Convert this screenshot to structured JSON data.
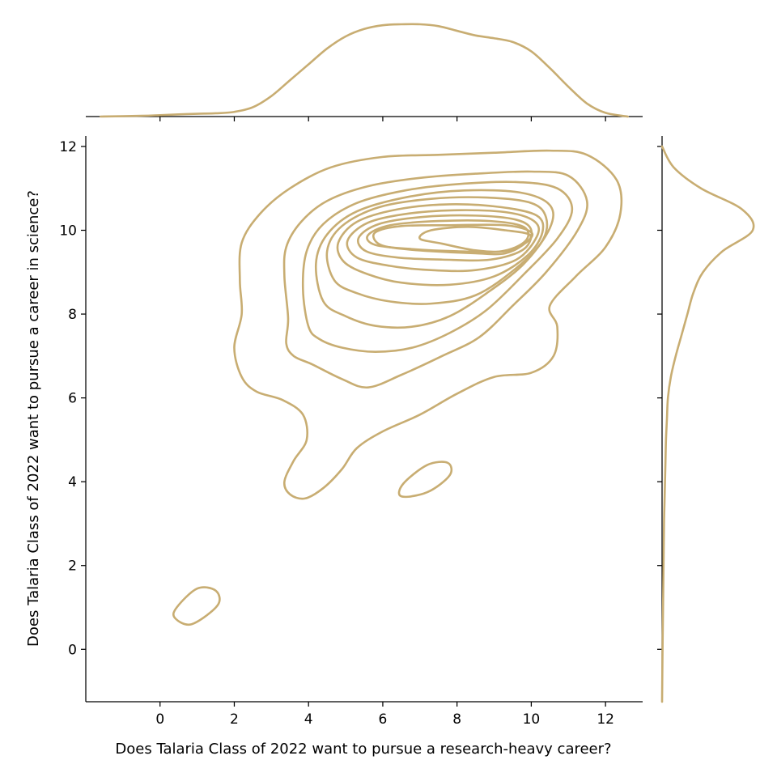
{
  "chart_data": {
    "type": "kde-jointplot",
    "xlabel": "Does Talaria Class of 2022 want to pursue a research-heavy career?",
    "ylabel": "Does Talaria Class of 2022 want to pursue a career in science?",
    "xlim": [
      -2,
      13
    ],
    "ylim": [
      -1.25,
      12.25
    ],
    "xticks": [
      "0",
      "2",
      "4",
      "6",
      "8",
      "10",
      "12"
    ],
    "yticks": [
      "0",
      "2",
      "4",
      "6",
      "8",
      "10",
      "12"
    ],
    "grid": false,
    "legend": "none",
    "color": "#c8ad72",
    "contours": [
      {
        "level": 1,
        "points": [
          [
            2.2,
            6.5
          ],
          [
            2.0,
            7.2
          ],
          [
            2.2,
            8.0
          ],
          [
            2.15,
            8.8
          ],
          [
            2.2,
            9.7
          ],
          [
            2.7,
            10.4
          ],
          [
            3.5,
            11.0
          ],
          [
            4.6,
            11.5
          ],
          [
            6.0,
            11.75
          ],
          [
            7.5,
            11.8
          ],
          [
            9.0,
            11.85
          ],
          [
            10.5,
            11.9
          ],
          [
            11.5,
            11.8
          ],
          [
            12.3,
            11.2
          ],
          [
            12.4,
            10.4
          ],
          [
            12.0,
            9.6
          ],
          [
            11.2,
            8.9
          ],
          [
            10.5,
            8.2
          ],
          [
            10.7,
            7.7
          ],
          [
            10.6,
            7.0
          ],
          [
            10.0,
            6.6
          ],
          [
            9.0,
            6.5
          ],
          [
            8.0,
            6.1
          ],
          [
            7.0,
            5.6
          ],
          [
            6.0,
            5.2
          ],
          [
            5.3,
            4.8
          ],
          [
            4.9,
            4.3
          ],
          [
            4.4,
            3.85
          ],
          [
            3.9,
            3.6
          ],
          [
            3.5,
            3.7
          ],
          [
            3.35,
            4.0
          ],
          [
            3.6,
            4.5
          ],
          [
            3.95,
            5.0
          ],
          [
            3.85,
            5.6
          ],
          [
            3.3,
            5.95
          ],
          [
            2.6,
            6.15
          ],
          [
            2.2,
            6.5
          ]
        ]
      },
      {
        "level": 1,
        "points": [
          [
            6.5,
            3.65
          ],
          [
            7.2,
            3.75
          ],
          [
            7.8,
            4.15
          ],
          [
            7.75,
            4.45
          ],
          [
            7.2,
            4.4
          ],
          [
            6.55,
            3.95
          ],
          [
            6.5,
            3.65
          ]
        ]
      },
      {
        "level": 1,
        "points": [
          [
            0.4,
            0.75
          ],
          [
            0.85,
            0.6
          ],
          [
            1.55,
            1.05
          ],
          [
            1.5,
            1.4
          ],
          [
            1.0,
            1.45
          ],
          [
            0.45,
            1.0
          ],
          [
            0.4,
            0.75
          ]
        ]
      },
      {
        "level": 2,
        "points": [
          [
            3.4,
            7.3
          ],
          [
            3.45,
            7.9
          ],
          [
            3.35,
            8.9
          ],
          [
            3.4,
            9.6
          ],
          [
            3.8,
            10.2
          ],
          [
            4.5,
            10.7
          ],
          [
            5.6,
            11.05
          ],
          [
            7.0,
            11.25
          ],
          [
            8.5,
            11.35
          ],
          [
            10.0,
            11.4
          ],
          [
            11.0,
            11.3
          ],
          [
            11.5,
            10.7
          ],
          [
            11.25,
            10.0
          ],
          [
            10.4,
            9.0
          ],
          [
            9.5,
            8.2
          ],
          [
            8.6,
            7.45
          ],
          [
            7.6,
            7.0
          ],
          [
            6.5,
            6.55
          ],
          [
            5.6,
            6.25
          ],
          [
            4.9,
            6.45
          ],
          [
            4.1,
            6.8
          ],
          [
            3.6,
            7.0
          ],
          [
            3.4,
            7.3
          ]
        ]
      },
      {
        "level": 3,
        "points": [
          [
            4.0,
            7.7
          ],
          [
            3.85,
            8.6
          ],
          [
            3.95,
            9.5
          ],
          [
            4.4,
            10.15
          ],
          [
            5.3,
            10.65
          ],
          [
            6.6,
            10.95
          ],
          [
            8.0,
            11.1
          ],
          [
            9.6,
            11.15
          ],
          [
            10.7,
            11.0
          ],
          [
            11.1,
            10.5
          ],
          [
            10.7,
            9.8
          ],
          [
            9.8,
            8.95
          ],
          [
            8.8,
            8.1
          ],
          [
            7.8,
            7.55
          ],
          [
            6.8,
            7.2
          ],
          [
            5.8,
            7.1
          ],
          [
            4.9,
            7.2
          ],
          [
            4.3,
            7.4
          ],
          [
            4.0,
            7.7
          ]
        ]
      },
      {
        "level": 4,
        "points": [
          [
            4.4,
            8.3
          ],
          [
            4.2,
            9.2
          ],
          [
            4.5,
            9.9
          ],
          [
            5.3,
            10.45
          ],
          [
            6.7,
            10.8
          ],
          [
            8.2,
            10.95
          ],
          [
            9.7,
            10.9
          ],
          [
            10.5,
            10.6
          ],
          [
            10.5,
            10.05
          ],
          [
            9.8,
            9.2
          ],
          [
            8.8,
            8.5
          ],
          [
            7.8,
            7.95
          ],
          [
            6.8,
            7.7
          ],
          [
            5.8,
            7.72
          ],
          [
            5.0,
            7.95
          ],
          [
            4.4,
            8.3
          ]
        ]
      },
      {
        "level": 5,
        "points": [
          [
            4.7,
            8.8
          ],
          [
            4.5,
            9.5
          ],
          [
            4.9,
            10.1
          ],
          [
            5.9,
            10.55
          ],
          [
            7.3,
            10.75
          ],
          [
            8.8,
            10.78
          ],
          [
            10.0,
            10.65
          ],
          [
            10.4,
            10.3
          ],
          [
            10.3,
            9.75
          ],
          [
            9.6,
            9.1
          ],
          [
            8.5,
            8.45
          ],
          [
            7.3,
            8.25
          ],
          [
            6.2,
            8.3
          ],
          [
            5.3,
            8.5
          ],
          [
            4.7,
            8.8
          ]
        ]
      },
      {
        "level": 6,
        "points": [
          [
            4.95,
            9.25
          ],
          [
            4.8,
            9.7
          ],
          [
            5.3,
            10.2
          ],
          [
            6.4,
            10.5
          ],
          [
            7.8,
            10.62
          ],
          [
            9.2,
            10.55
          ],
          [
            10.15,
            10.35
          ],
          [
            10.3,
            9.95
          ],
          [
            9.9,
            9.4
          ],
          [
            9.0,
            8.9
          ],
          [
            7.8,
            8.7
          ],
          [
            6.5,
            8.75
          ],
          [
            5.6,
            8.95
          ],
          [
            4.95,
            9.25
          ]
        ]
      },
      {
        "level": 7,
        "points": [
          [
            5.3,
            9.35
          ],
          [
            5.05,
            9.75
          ],
          [
            5.6,
            10.18
          ],
          [
            6.7,
            10.4
          ],
          [
            8.1,
            10.48
          ],
          [
            9.4,
            10.42
          ],
          [
            10.1,
            10.2
          ],
          [
            10.15,
            9.85
          ],
          [
            9.6,
            9.3
          ],
          [
            8.5,
            9.05
          ],
          [
            7.3,
            9.05
          ],
          [
            6.2,
            9.15
          ],
          [
            5.3,
            9.35
          ]
        ]
      },
      {
        "level": 8,
        "points": [
          [
            5.55,
            9.5
          ],
          [
            5.35,
            9.82
          ],
          [
            5.9,
            10.15
          ],
          [
            7.1,
            10.32
          ],
          [
            8.5,
            10.35
          ],
          [
            9.6,
            10.25
          ],
          [
            10.0,
            10.0
          ],
          [
            9.8,
            9.55
          ],
          [
            8.9,
            9.3
          ],
          [
            7.6,
            9.3
          ],
          [
            6.4,
            9.35
          ],
          [
            5.55,
            9.5
          ]
        ]
      },
      {
        "level": 9,
        "points": [
          [
            5.8,
            9.65
          ],
          [
            5.6,
            9.88
          ],
          [
            6.2,
            10.12
          ],
          [
            7.5,
            10.22
          ],
          [
            8.9,
            10.22
          ],
          [
            9.8,
            10.08
          ],
          [
            9.85,
            9.75
          ],
          [
            9.2,
            9.5
          ],
          [
            8.0,
            9.5
          ],
          [
            6.8,
            9.55
          ],
          [
            5.8,
            9.65
          ]
        ]
      },
      {
        "level": 10,
        "points": [
          [
            5.85,
            9.7
          ],
          [
            5.8,
            9.95
          ],
          [
            6.5,
            10.1
          ],
          [
            7.8,
            10.12
          ],
          [
            9.3,
            10.12
          ],
          [
            10.0,
            9.95
          ],
          [
            9.85,
            9.7
          ],
          [
            9.3,
            9.45
          ],
          [
            8.5,
            9.45
          ],
          [
            7.3,
            9.5
          ],
          [
            6.3,
            9.58
          ],
          [
            5.85,
            9.7
          ]
        ]
      },
      {
        "level": 11,
        "points": [
          [
            7.0,
            9.8
          ],
          [
            7.3,
            10.0
          ],
          [
            8.3,
            10.08
          ],
          [
            9.3,
            10.0
          ],
          [
            9.95,
            9.9
          ],
          [
            9.85,
            9.7
          ],
          [
            9.3,
            9.5
          ],
          [
            8.5,
            9.52
          ],
          [
            7.6,
            9.68
          ],
          [
            7.0,
            9.8
          ]
        ]
      }
    ],
    "marginal_x": {
      "x": [
        -1.6,
        -0.5,
        0,
        0.5,
        1,
        1.5,
        2,
        2.5,
        3,
        3.5,
        4,
        4.5,
        5,
        5.5,
        6,
        6.5,
        7,
        7.5,
        8,
        8.5,
        9,
        9.5,
        10,
        10.5,
        11,
        11.5,
        12,
        12.6
      ],
      "density": [
        0.0,
        0.008,
        0.015,
        0.023,
        0.03,
        0.035,
        0.05,
        0.1,
        0.22,
        0.39,
        0.56,
        0.73,
        0.86,
        0.94,
        0.98,
        0.99,
        0.99,
        0.97,
        0.92,
        0.87,
        0.84,
        0.8,
        0.7,
        0.52,
        0.32,
        0.14,
        0.04,
        0.0
      ]
    },
    "marginal_y": {
      "y": [
        -1.25,
        0,
        1,
        2,
        3,
        3.5,
        4,
        4.5,
        5,
        5.5,
        6,
        6.5,
        7,
        7.5,
        8,
        8.5,
        9,
        9.5,
        10,
        10.5,
        11,
        11.5,
        12
      ],
      "density": [
        0.0,
        0.005,
        0.01,
        0.015,
        0.02,
        0.025,
        0.03,
        0.035,
        0.04,
        0.05,
        0.06,
        0.09,
        0.14,
        0.2,
        0.26,
        0.32,
        0.42,
        0.62,
        0.93,
        0.82,
        0.4,
        0.12,
        0.0
      ]
    }
  }
}
